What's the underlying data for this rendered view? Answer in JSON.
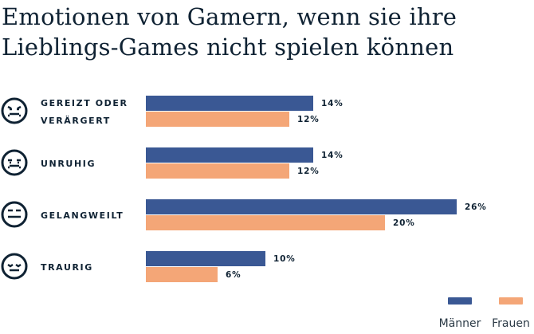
{
  "chart_data": {
    "type": "bar",
    "orientation": "horizontal",
    "title": "Emotionen von Gamern, wenn sie ihre Lieblings-Games nicht spielen können",
    "categories": [
      {
        "label_lines": [
          "GEREIZT ODER",
          "VERÄRGERT"
        ],
        "icon": "angry-face-icon"
      },
      {
        "label_lines": [
          "UNRUHIG"
        ],
        "icon": "anxious-face-icon"
      },
      {
        "label_lines": [
          "GELANGWEILT"
        ],
        "icon": "bored-face-icon"
      },
      {
        "label_lines": [
          "TRAURIG"
        ],
        "icon": "sad-face-icon"
      }
    ],
    "series": [
      {
        "name": "Männer",
        "color": "#3a5894",
        "values": [
          14,
          14,
          26,
          10
        ],
        "labels": [
          "14%",
          "14%",
          "26%",
          "10%"
        ]
      },
      {
        "name": "Frauen",
        "color": "#f4a677",
        "values": [
          12,
          12,
          20,
          6
        ],
        "labels": [
          "12%",
          "12%",
          "20%",
          "6%"
        ]
      }
    ],
    "unit": "%",
    "xlim": [
      0,
      26
    ],
    "grid": false,
    "legend_position": "bottom-right"
  }
}
